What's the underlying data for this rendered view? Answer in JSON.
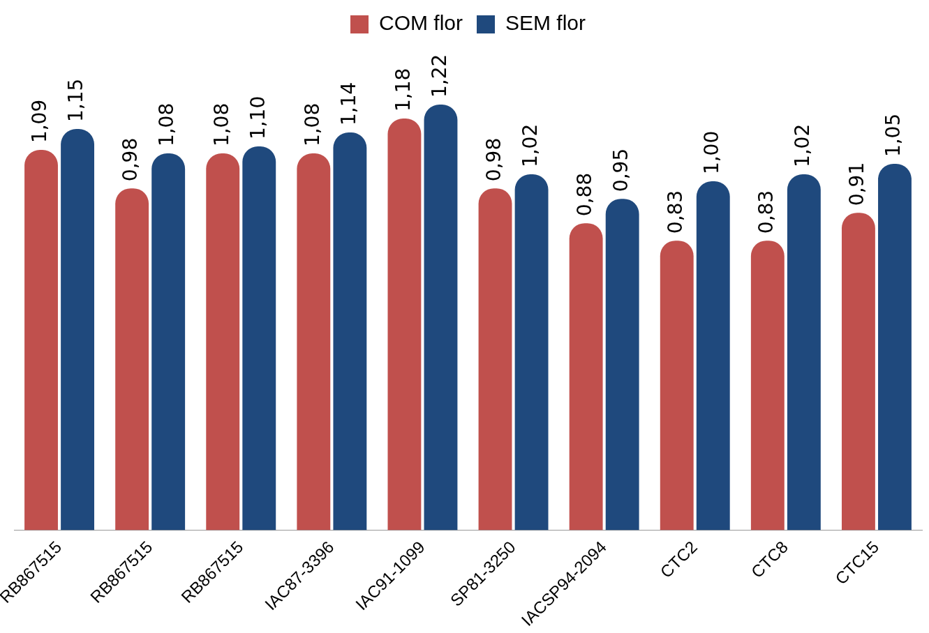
{
  "chart_data": {
    "type": "bar",
    "categories": [
      "RB867515",
      "RB867515",
      "RB867515",
      "IAC87-3396",
      "IAC91-1099",
      "SP81-3250",
      "IACSP94-2094",
      "CTC2",
      "CTC8",
      "CTC15"
    ],
    "series": [
      {
        "name": "COM flor",
        "color": "#c0504d",
        "values": [
          1.09,
          0.98,
          1.08,
          1.08,
          1.18,
          0.98,
          0.88,
          0.83,
          0.83,
          0.91
        ],
        "value_labels": [
          "1,09",
          "0,98",
          "1,08",
          "1,08",
          "1,18",
          "0,98",
          "0,88",
          "0,83",
          "0,83",
          "0,91"
        ]
      },
      {
        "name": "SEM flor",
        "color": "#1f497d",
        "values": [
          1.15,
          1.08,
          1.1,
          1.14,
          1.22,
          1.02,
          0.95,
          1.0,
          1.02,
          1.05
        ],
        "value_labels": [
          "1,15",
          "1,08",
          "1,10",
          "1,14",
          "1,22",
          "1,02",
          "0,95",
          "1,00",
          "1,02",
          "1,05"
        ]
      }
    ],
    "tick_labels": "x",
    "legend": "top"
  }
}
